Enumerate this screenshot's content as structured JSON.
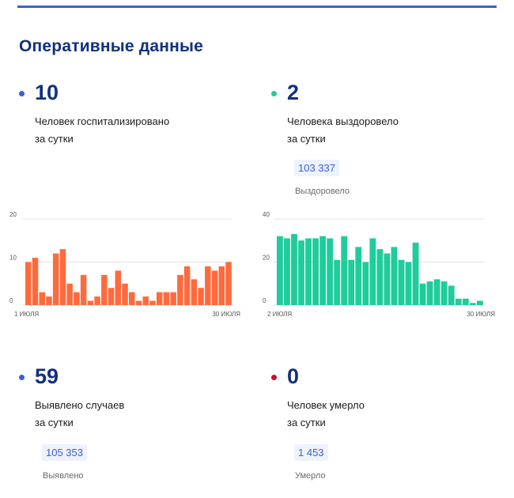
{
  "section_title": "Оперативные данные",
  "colors": {
    "accent": "#3a5fd9",
    "title": "#12307d",
    "orange": "#ff6a3d",
    "teal": "#1fcc9c",
    "red": "#c8102e",
    "blue_dot": "#3a5fd9",
    "teal_dot": "#1fcc9c"
  },
  "stats": {
    "hospitalized": {
      "value": "10",
      "line1": "Человек госпитализировано",
      "line2": "за сутки"
    },
    "recovered": {
      "value": "2",
      "line1": "Человека выздоровело",
      "line2": "за сутки",
      "total": "103 337",
      "total_label": "Выздоровело"
    },
    "cases": {
      "value": "59",
      "line1": "Выявлено случаев",
      "line2": "за сутки",
      "total": "105 353",
      "total_label": "Выявлено"
    },
    "deaths": {
      "value": "0",
      "line1": "Человек умерло",
      "line2": "за сутки",
      "total": "1 453",
      "total_label": "Умерло"
    }
  },
  "chart_data": [
    {
      "type": "bar",
      "x_start_label": "1 июля",
      "x_end_label": "30 июля",
      "yticks": [
        "0",
        "10",
        "20"
      ],
      "ylim": [
        0,
        20
      ],
      "grid": true,
      "color": "#ff6a3d",
      "values": [
        10,
        11,
        3,
        2,
        12,
        13,
        5,
        3,
        7,
        1,
        2,
        7,
        4,
        8,
        5,
        3,
        1,
        2,
        1,
        3,
        3,
        3,
        7,
        9,
        6,
        4,
        9,
        8,
        9,
        10
      ]
    },
    {
      "type": "bar",
      "x_start_label": "2 июля",
      "x_end_label": "30 июля",
      "yticks": [
        "0",
        "20",
        "40"
      ],
      "ylim": [
        0,
        40
      ],
      "grid": true,
      "color": "#1fcc9c",
      "values": [
        32,
        31,
        33,
        30,
        31,
        31,
        32,
        31,
        21,
        32,
        21,
        27,
        20,
        31,
        26,
        24,
        27,
        21,
        20,
        29,
        10,
        11,
        12,
        11,
        9,
        3,
        3,
        1,
        2
      ]
    }
  ]
}
